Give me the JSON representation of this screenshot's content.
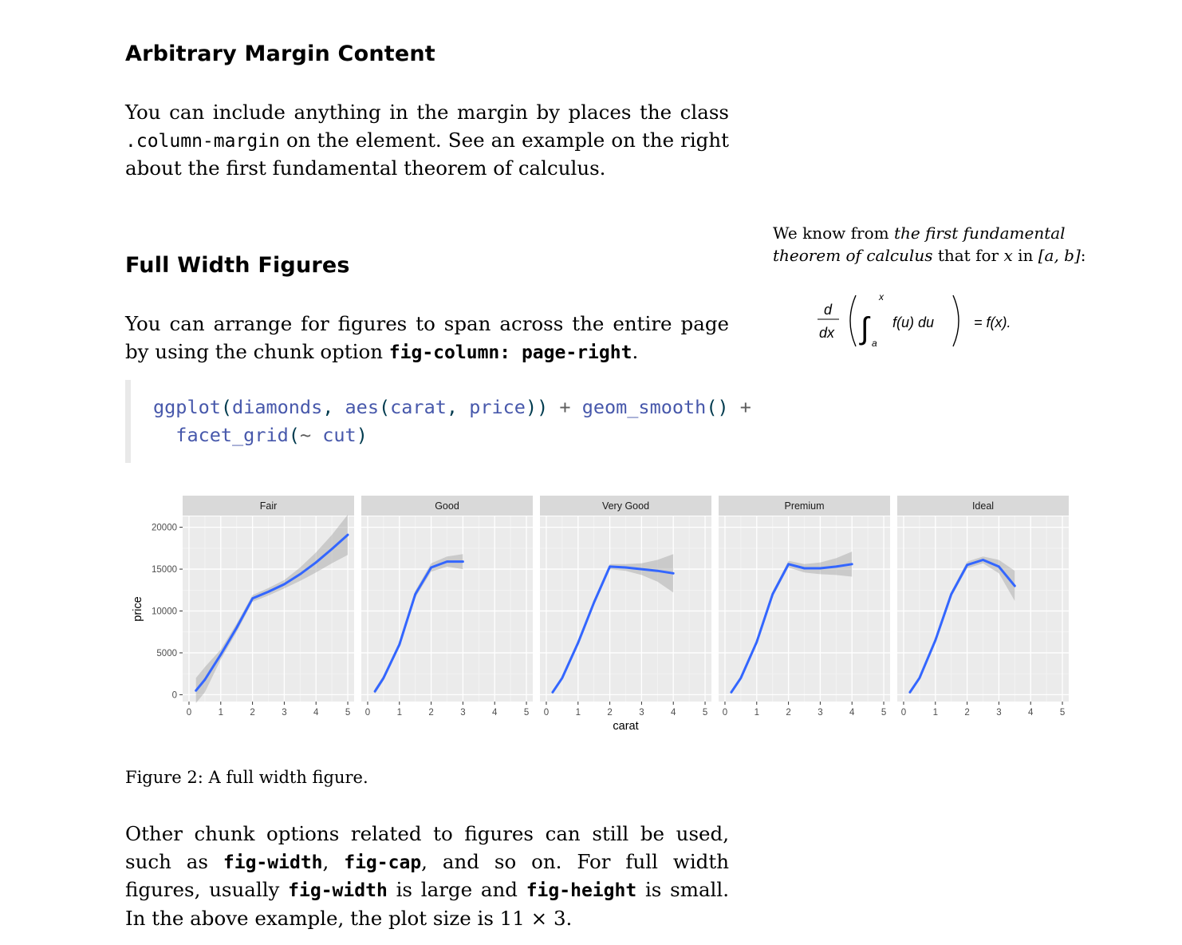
{
  "section1": {
    "title": "Arbitrary Margin Content",
    "p1": "You can include anything in the margin by places the class",
    "p1_code": ".column-margin",
    "p1_rest": " on the element. See an example on the right about the first fundamental theorem of calculus."
  },
  "margin": {
    "t1": "We know from ",
    "t1_it": "the first fundamental theorem of calculus",
    "t1_end": " that for ",
    "var_x": "x",
    "t1_in": " in ",
    "interval": "[a, b]",
    "colon": ":",
    "eq_d": "d",
    "eq_dx": "dx",
    "eq_upper": "x",
    "eq_lower": "a",
    "eq_body": "f(u) du",
    "eq_rhs": "= f(x)."
  },
  "section2": {
    "title": "Full Width Figures",
    "p1": "You can arrange for figures to span across the entire page by using the chunk option ",
    "p1_code": "fig-column: page-right",
    "p1_end": "."
  },
  "code": {
    "l1_fn1": "ggplot",
    "l1_p1": "(",
    "l1_a1": "diamonds",
    "l1_c1": ", ",
    "l1_fn2": "aes",
    "l1_p2": "(",
    "l1_a2": "carat",
    "l1_c2": ", ",
    "l1_a3": "price",
    "l1_p3": "))",
    "l1_op1": " + ",
    "l1_fn3": "geom_smooth",
    "l1_p4": "()",
    "l1_op2": " +",
    "l2_indent": "  ",
    "l2_fn": "facet_grid",
    "l2_p1": "(",
    "l2_t": "~",
    "l2_a": " cut",
    "l2_p2": ")"
  },
  "figure": {
    "caption": "Figure 2: A full width figure."
  },
  "chart_data": {
    "type": "line",
    "facets": [
      "Fair",
      "Good",
      "Very Good",
      "Premium",
      "Ideal"
    ],
    "xlabel": "carat",
    "ylabel": "price",
    "xlim": [
      0,
      5
    ],
    "ylim": [
      0,
      20000
    ],
    "xticks": [
      "0",
      "1",
      "2",
      "3",
      "4",
      "5"
    ],
    "yticks": [
      "0",
      "5000",
      "10000",
      "15000",
      "20000"
    ],
    "grid": true,
    "series": [
      {
        "facet": "Fair",
        "x": [
          0.22,
          0.5,
          1.0,
          1.5,
          2.0,
          2.5,
          3.0,
          3.5,
          4.0,
          4.5,
          5.0
        ],
        "y": [
          500,
          1800,
          4800,
          8000,
          11500,
          12300,
          13200,
          14400,
          15800,
          17400,
          19100
        ],
        "band": [
          1500,
          1500,
          600,
          500,
          400,
          450,
          500,
          800,
          1200,
          1700,
          2400
        ]
      },
      {
        "facet": "Good",
        "x": [
          0.23,
          0.5,
          1.0,
          1.5,
          2.0,
          2.5,
          3.0
        ],
        "y": [
          400,
          2000,
          6000,
          12000,
          15200,
          15900,
          15900
        ],
        "band": [
          300,
          300,
          300,
          400,
          500,
          600,
          900
        ]
      },
      {
        "facet": "Very Good",
        "x": [
          0.2,
          0.5,
          1.0,
          1.5,
          2.0,
          2.5,
          3.0,
          3.5,
          4.0
        ],
        "y": [
          300,
          2000,
          6200,
          11000,
          15300,
          15200,
          15000,
          14800,
          14500
        ],
        "band": [
          200,
          200,
          250,
          300,
          300,
          400,
          700,
          1300,
          2300
        ]
      },
      {
        "facet": "Premium",
        "x": [
          0.2,
          0.5,
          1.0,
          1.5,
          2.0,
          2.5,
          3.0,
          3.5,
          4.0
        ],
        "y": [
          300,
          2000,
          6300,
          12000,
          15600,
          15100,
          15100,
          15300,
          15600
        ],
        "band": [
          200,
          200,
          250,
          300,
          400,
          500,
          700,
          1000,
          1500
        ]
      },
      {
        "facet": "Ideal",
        "x": [
          0.2,
          0.5,
          1.0,
          1.5,
          2.0,
          2.5,
          3.0,
          3.5
        ],
        "y": [
          300,
          2000,
          6500,
          12000,
          15500,
          16100,
          15300,
          13000
        ],
        "band": [
          200,
          200,
          250,
          300,
          400,
          400,
          800,
          1800
        ]
      }
    ]
  },
  "section3": {
    "t1": "Other chunk options related to figures can still be used, such as ",
    "c1": "fig-width",
    "t2": ", ",
    "c2": "fig-cap",
    "t3": ", and so on. For full width figures, usually ",
    "c3": "fig-width",
    "t4": " is large and ",
    "c4": "fig-height",
    "t5": " is small.  In the above example, the plot size is 11 × 3."
  }
}
